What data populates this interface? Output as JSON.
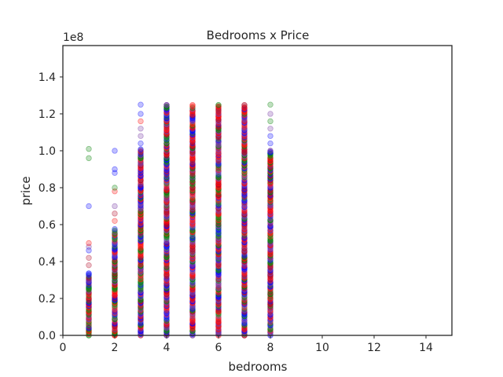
{
  "chart_data": {
    "type": "scatter",
    "title": "Bedrooms x Price",
    "xlabel": "bedrooms",
    "ylabel": "price",
    "offset_text": "1e8",
    "xlim": [
      0,
      15
    ],
    "ylim": [
      0,
      1.57
    ],
    "x_ticks": [
      0,
      2,
      4,
      6,
      8,
      10,
      12,
      14
    ],
    "x_tick_labels": [
      "0",
      "2",
      "4",
      "6",
      "8",
      "10",
      "12",
      "14"
    ],
    "y_ticks": [
      0,
      0.2,
      0.4,
      0.6,
      0.8,
      1.0,
      1.2,
      1.4
    ],
    "y_tick_labels": [
      "0.0",
      "0.2",
      "0.4",
      "0.6",
      "0.8",
      "1.0",
      "1.2",
      "1.4"
    ],
    "grid": false,
    "legend": "none",
    "colors": {
      "red": "#ff0000",
      "blue": "#0000ff",
      "green": "#008000",
      "dark_red": "#b00020",
      "purple": "#7030a0"
    },
    "columns": [
      {
        "x": 1,
        "dense_max": 0.34,
        "outliers": [
          0.38,
          0.42,
          0.46,
          0.48,
          0.5,
          0.7,
          0.96,
          1.01
        ]
      },
      {
        "x": 2,
        "dense_max": 0.58,
        "outliers": [
          0.62,
          0.66,
          0.7,
          0.78,
          0.8,
          0.88,
          0.9,
          1.0
        ]
      },
      {
        "x": 3,
        "dense_max": 1.01,
        "outliers": [
          1.04,
          1.08,
          1.12,
          1.16,
          1.2,
          1.25
        ]
      },
      {
        "x": 4,
        "dense_max": 1.25,
        "outliers": []
      },
      {
        "x": 5,
        "dense_max": 1.25,
        "outliers": []
      },
      {
        "x": 6,
        "dense_max": 1.25,
        "outliers": []
      },
      {
        "x": 7,
        "dense_max": 1.25,
        "outliers": []
      },
      {
        "x": 8,
        "dense_max": 1.0,
        "outliers": [
          1.04,
          1.08,
          1.12,
          1.16,
          1.2,
          1.25
        ]
      }
    ]
  }
}
